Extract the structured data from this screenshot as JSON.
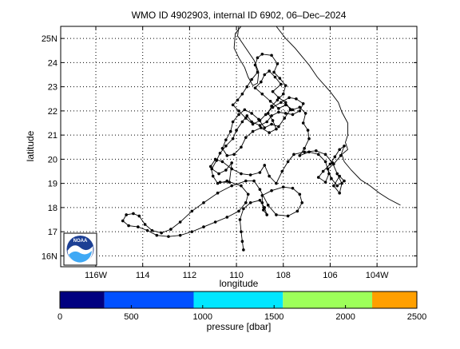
{
  "chart_data": {
    "type": "scatter",
    "title": "WMO ID 4902903, internal ID 6902, 06–Dec–2024",
    "xlabel": "longitude",
    "ylabel": "latitude",
    "xlim": [
      -117.5,
      -102.3
    ],
    "ylim": [
      15.55,
      25.5
    ],
    "grid": true,
    "x_ticks": [
      {
        "value": -116,
        "label": "116W"
      },
      {
        "value": -114,
        "label": "114"
      },
      {
        "value": -112,
        "label": "112"
      },
      {
        "value": -110,
        "label": "110"
      },
      {
        "value": -108,
        "label": "108"
      },
      {
        "value": -106,
        "label": "106"
      },
      {
        "value": -104,
        "label": "104W"
      }
    ],
    "y_ticks": [
      {
        "value": 16,
        "label": "16N"
      },
      {
        "value": 17,
        "label": "17"
      },
      {
        "value": 18,
        "label": "18"
      },
      {
        "value": 19,
        "label": "19"
      },
      {
        "value": 20,
        "label": "20"
      },
      {
        "value": 21,
        "label": "21"
      },
      {
        "value": 22,
        "label": "22"
      },
      {
        "value": 23,
        "label": "23"
      },
      {
        "value": 24,
        "label": "24"
      },
      {
        "value": 25,
        "label": "25N"
      }
    ],
    "coastline": [
      [
        [
          -109.8,
          25.5
        ],
        [
          -110.05,
          25.2
        ],
        [
          -110.1,
          24.6
        ],
        [
          -109.9,
          24.2
        ],
        [
          -109.65,
          23.8
        ],
        [
          -109.5,
          23.4
        ],
        [
          -109.3,
          23.05
        ],
        [
          -109.1,
          23.15
        ],
        [
          -109.05,
          23.6
        ],
        [
          -109.25,
          24.1
        ],
        [
          -109.6,
          24.6
        ],
        [
          -109.95,
          25.1
        ],
        [
          -109.9,
          25.5
        ]
      ],
      [
        [
          -108.3,
          25.5
        ],
        [
          -107.9,
          25.0
        ],
        [
          -107.5,
          24.6
        ],
        [
          -107.2,
          24.25
        ],
        [
          -106.9,
          23.9
        ],
        [
          -106.55,
          23.4
        ],
        [
          -106.0,
          22.8
        ],
        [
          -105.65,
          22.35
        ],
        [
          -105.5,
          21.95
        ],
        [
          -105.25,
          21.5
        ],
        [
          -105.25,
          21.0
        ],
        [
          -105.35,
          20.7
        ],
        [
          -105.25,
          20.4
        ],
        [
          -105.5,
          20.2
        ],
        [
          -105.4,
          19.9
        ],
        [
          -105.1,
          19.55
        ],
        [
          -104.7,
          19.15
        ],
        [
          -104.3,
          18.9
        ],
        [
          -103.9,
          18.6
        ],
        [
          -103.5,
          18.35
        ],
        [
          -103.0,
          18.1
        ]
      ]
    ],
    "color_scale": {
      "label": "pressure [dbar]",
      "range": [
        0,
        2500
      ],
      "tick_labels": [
        "0",
        "500",
        "1000",
        "1500",
        "2000",
        "2500"
      ],
      "bands": [
        {
          "from": 0,
          "to": 312,
          "color": "#000080"
        },
        {
          "from": 312,
          "to": 937,
          "color": "#0050ff"
        },
        {
          "from": 937,
          "to": 1562,
          "color": "#00e6ff"
        },
        {
          "from": 1562,
          "to": 2187,
          "color": "#9dff5a"
        },
        {
          "from": 2187,
          "to": 2500,
          "color": "#ff9f00"
        }
      ]
    },
    "series": [
      {
        "marker_color": "#000000",
        "points": [
          [
            -109.7,
            16.25
          ],
          [
            -109.75,
            16.6
          ],
          [
            -109.8,
            17.0
          ],
          [
            -109.85,
            17.5
          ],
          [
            -109.7,
            17.95
          ],
          [
            -109.4,
            18.2
          ],
          [
            -109.0,
            18.3
          ],
          [
            -108.8,
            18.0
          ],
          [
            -108.7,
            17.7
          ],
          [
            -108.85,
            17.9
          ],
          [
            -108.9,
            18.2
          ],
          [
            -108.9,
            18.5
          ],
          [
            -108.5,
            18.7
          ],
          [
            -108.0,
            18.85
          ],
          [
            -107.6,
            18.8
          ],
          [
            -107.3,
            18.55
          ],
          [
            -107.2,
            18.2
          ],
          [
            -107.4,
            17.85
          ],
          [
            -107.8,
            17.65
          ],
          [
            -108.3,
            17.7
          ],
          [
            -108.65,
            18.1
          ],
          [
            -109.0,
            18.75
          ],
          [
            -109.25,
            19.1
          ],
          [
            -109.6,
            19.1
          ],
          [
            -110.2,
            18.9
          ],
          [
            -110.8,
            18.6
          ],
          [
            -111.4,
            18.2
          ],
          [
            -111.9,
            17.85
          ],
          [
            -112.4,
            17.4
          ],
          [
            -112.8,
            17.1
          ],
          [
            -113.2,
            16.95
          ],
          [
            -113.6,
            17.05
          ],
          [
            -113.9,
            17.3
          ],
          [
            -114.15,
            17.65
          ],
          [
            -114.4,
            17.75
          ],
          [
            -114.7,
            17.7
          ],
          [
            -114.85,
            17.45
          ],
          [
            -114.6,
            17.25
          ],
          [
            -114.2,
            17.2
          ],
          [
            -113.8,
            17.05
          ],
          [
            -113.4,
            16.85
          ],
          [
            -112.9,
            16.8
          ],
          [
            -112.4,
            16.85
          ],
          [
            -111.9,
            17.0
          ],
          [
            -111.4,
            17.2
          ],
          [
            -110.9,
            17.4
          ],
          [
            -110.4,
            17.6
          ],
          [
            -109.9,
            17.85
          ],
          [
            -109.6,
            18.2
          ],
          [
            -109.5,
            18.55
          ],
          [
            -109.8,
            18.9
          ],
          [
            -110.4,
            19.1
          ],
          [
            -110.8,
            19.0
          ],
          [
            -111.0,
            19.3
          ],
          [
            -111.1,
            19.7
          ],
          [
            -110.9,
            20.0
          ],
          [
            -110.6,
            19.9
          ],
          [
            -110.2,
            19.6
          ],
          [
            -109.8,
            19.4
          ],
          [
            -109.4,
            19.35
          ],
          [
            -109.0,
            19.45
          ],
          [
            -108.8,
            19.75
          ],
          [
            -108.6,
            19.3
          ],
          [
            -108.3,
            19.0
          ],
          [
            -108.05,
            19.5
          ],
          [
            -107.8,
            19.9
          ],
          [
            -107.55,
            20.2
          ],
          [
            -107.1,
            20.3
          ],
          [
            -106.6,
            20.35
          ],
          [
            -106.2,
            20.2
          ],
          [
            -105.9,
            19.85
          ],
          [
            -105.7,
            19.4
          ],
          [
            -105.5,
            19.0
          ],
          [
            -105.6,
            18.6
          ],
          [
            -105.85,
            18.9
          ],
          [
            -105.6,
            19.3
          ],
          [
            -105.4,
            19.1
          ],
          [
            -105.7,
            18.9
          ],
          [
            -105.95,
            19.2
          ],
          [
            -106.1,
            19.6
          ],
          [
            -105.85,
            19.8
          ],
          [
            -105.55,
            20.15
          ],
          [
            -105.4,
            20.55
          ],
          [
            -105.6,
            20.4
          ],
          [
            -105.8,
            20.1
          ],
          [
            -106.0,
            19.8
          ],
          [
            -106.3,
            19.5
          ],
          [
            -106.5,
            19.25
          ],
          [
            -106.2,
            19.05
          ],
          [
            -106.05,
            19.4
          ],
          [
            -106.2,
            19.9
          ],
          [
            -106.5,
            20.2
          ],
          [
            -106.9,
            20.3
          ],
          [
            -107.3,
            20.15
          ],
          [
            -107.1,
            20.45
          ],
          [
            -106.9,
            20.85
          ],
          [
            -106.95,
            21.2
          ],
          [
            -107.15,
            21.5
          ],
          [
            -107.05,
            21.9
          ],
          [
            -107.3,
            22.15
          ],
          [
            -107.6,
            22.05
          ],
          [
            -107.9,
            22.25
          ],
          [
            -108.2,
            22.1
          ],
          [
            -108.55,
            22.4
          ],
          [
            -108.9,
            22.7
          ],
          [
            -109.2,
            22.95
          ],
          [
            -108.95,
            23.2
          ],
          [
            -108.8,
            23.5
          ],
          [
            -108.6,
            23.65
          ],
          [
            -108.35,
            23.4
          ],
          [
            -108.1,
            23.1
          ],
          [
            -108.45,
            22.8
          ],
          [
            -108.2,
            22.55
          ],
          [
            -107.9,
            22.35
          ],
          [
            -107.7,
            22.05
          ],
          [
            -107.95,
            21.7
          ],
          [
            -108.2,
            21.35
          ],
          [
            -108.5,
            21.45
          ],
          [
            -108.8,
            21.3
          ],
          [
            -109.05,
            21.65
          ],
          [
            -109.35,
            21.9
          ],
          [
            -109.65,
            22.05
          ],
          [
            -109.9,
            21.85
          ],
          [
            -110.15,
            21.55
          ],
          [
            -110.25,
            21.15
          ],
          [
            -110.45,
            20.8
          ],
          [
            -110.6,
            20.45
          ],
          [
            -110.4,
            20.15
          ],
          [
            -110.1,
            20.2
          ],
          [
            -109.8,
            20.5
          ],
          [
            -109.6,
            20.9
          ],
          [
            -109.3,
            21.15
          ],
          [
            -108.95,
            21.3
          ],
          [
            -108.6,
            21.1
          ],
          [
            -108.3,
            21.25
          ],
          [
            -108.45,
            21.6
          ],
          [
            -108.65,
            21.9
          ],
          [
            -108.5,
            22.2
          ],
          [
            -108.25,
            22.45
          ],
          [
            -108.0,
            22.7
          ],
          [
            -107.9,
            23.05
          ],
          [
            -108.15,
            23.35
          ],
          [
            -108.4,
            23.6
          ],
          [
            -108.25,
            23.95
          ],
          [
            -108.5,
            24.3
          ],
          [
            -108.9,
            24.35
          ],
          [
            -109.1,
            24.2
          ],
          [
            -109.2,
            23.9
          ],
          [
            -109.1,
            23.6
          ],
          [
            -109.35,
            23.3
          ],
          [
            -109.55,
            23.0
          ],
          [
            -109.75,
            22.7
          ],
          [
            -109.95,
            22.45
          ],
          [
            -110.15,
            22.25
          ],
          [
            -109.9,
            22.0
          ],
          [
            -109.6,
            21.7
          ],
          [
            -109.3,
            21.45
          ],
          [
            -109.0,
            21.6
          ],
          [
            -108.75,
            21.85
          ],
          [
            -108.45,
            22.15
          ],
          [
            -108.1,
            22.35
          ],
          [
            -107.75,
            22.55
          ],
          [
            -107.45,
            22.5
          ],
          [
            -107.15,
            22.3
          ],
          [
            -107.3,
            22.0
          ],
          [
            -107.6,
            21.85
          ],
          [
            -107.9,
            21.9
          ],
          [
            -108.2,
            21.95
          ],
          [
            -108.5,
            21.8
          ],
          [
            -108.7,
            21.55
          ],
          [
            -109.0,
            21.4
          ],
          [
            -109.35,
            21.55
          ],
          [
            -109.55,
            21.8
          ],
          [
            -109.75,
            21.55
          ],
          [
            -110.0,
            21.2
          ],
          [
            -110.15,
            20.85
          ],
          [
            -110.45,
            20.55
          ],
          [
            -110.7,
            20.25
          ],
          [
            -110.85,
            19.95
          ],
          [
            -111.05,
            19.6
          ],
          [
            -110.75,
            19.4
          ],
          [
            -110.45,
            19.55
          ],
          [
            -110.2,
            19.85
          ],
          [
            -110.3,
            19.05
          ],
          [
            -110.7,
            19.05
          ]
        ]
      }
    ]
  }
}
